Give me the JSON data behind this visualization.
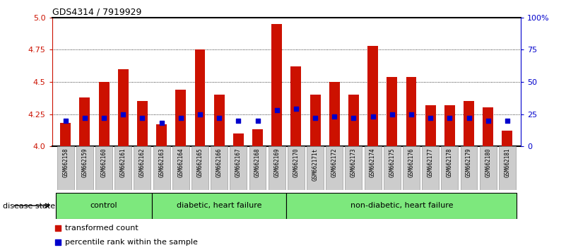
{
  "title": "GDS4314 / 7919929",
  "samples": [
    "GSM662158",
    "GSM662159",
    "GSM662160",
    "GSM662161",
    "GSM662162",
    "GSM662163",
    "GSM662164",
    "GSM662165",
    "GSM662166",
    "GSM662167",
    "GSM662168",
    "GSM662169",
    "GSM662170",
    "GSM662171t",
    "GSM662172",
    "GSM662173",
    "GSM662174",
    "GSM662175",
    "GSM662176",
    "GSM662177",
    "GSM662178",
    "GSM662179",
    "GSM662180",
    "GSM662181"
  ],
  "red_values": [
    4.18,
    4.38,
    4.5,
    4.6,
    4.35,
    4.17,
    4.44,
    4.75,
    4.4,
    4.1,
    4.13,
    4.95,
    4.62,
    4.4,
    4.5,
    4.4,
    4.78,
    4.54,
    4.54,
    4.32,
    4.32,
    4.35,
    4.3,
    4.12
  ],
  "blue_pct": [
    20,
    22,
    22,
    25,
    22,
    18,
    22,
    25,
    22,
    20,
    20,
    28,
    29,
    22,
    23,
    22,
    23,
    25,
    25,
    22,
    22,
    22,
    20,
    20
  ],
  "ylim_left": [
    4.0,
    5.0
  ],
  "ylim_right": [
    0,
    100
  ],
  "yticks_left": [
    4.0,
    4.25,
    4.5,
    4.75,
    5.0
  ],
  "yticks_right": [
    0,
    25,
    50,
    75,
    100
  ],
  "hlines": [
    4.25,
    4.5,
    4.75
  ],
  "bar_color": "#cc1100",
  "dot_color": "#0000cc",
  "bar_width": 0.55,
  "group_labels": [
    "control",
    "diabetic, heart failure",
    "non-diabetic, heart failure"
  ],
  "group_starts": [
    0,
    5,
    12
  ],
  "group_ends": [
    4,
    11,
    23
  ],
  "group_color": "#7de87d",
  "xtick_bg_color": "#cccccc",
  "legend_items": [
    "transformed count",
    "percentile rank within the sample"
  ],
  "disease_state_label": "disease state"
}
